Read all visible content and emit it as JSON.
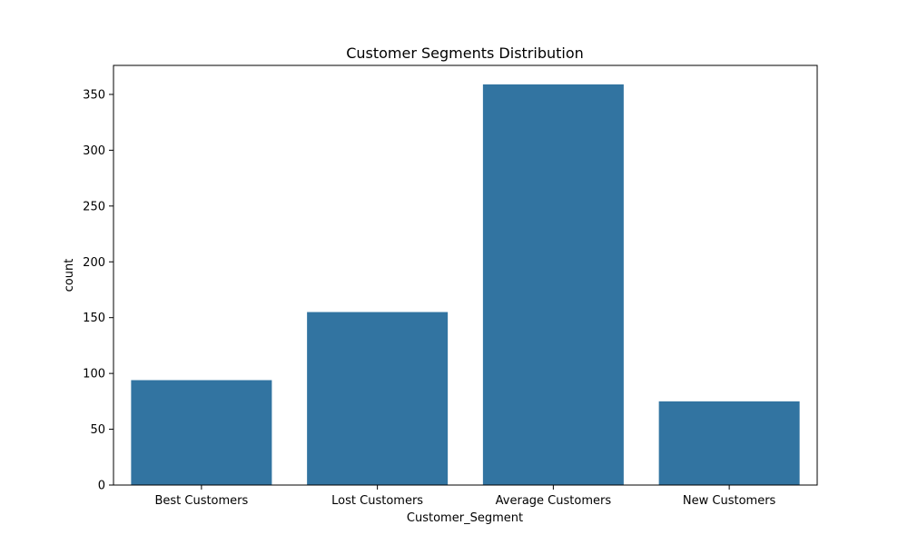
{
  "chart_data": {
    "type": "bar",
    "title": "Customer Segments Distribution",
    "xlabel": "Customer_Segment",
    "ylabel": "count",
    "categories": [
      "Best Customers",
      "Lost Customers",
      "Average Customers",
      "New Customers"
    ],
    "values": [
      94,
      155,
      359,
      75
    ],
    "ylim": [
      0,
      376
    ],
    "yticks": [
      0,
      50,
      100,
      150,
      200,
      250,
      300,
      350
    ],
    "grid": false,
    "legend": "none",
    "bar_color": "#3274a1"
  }
}
